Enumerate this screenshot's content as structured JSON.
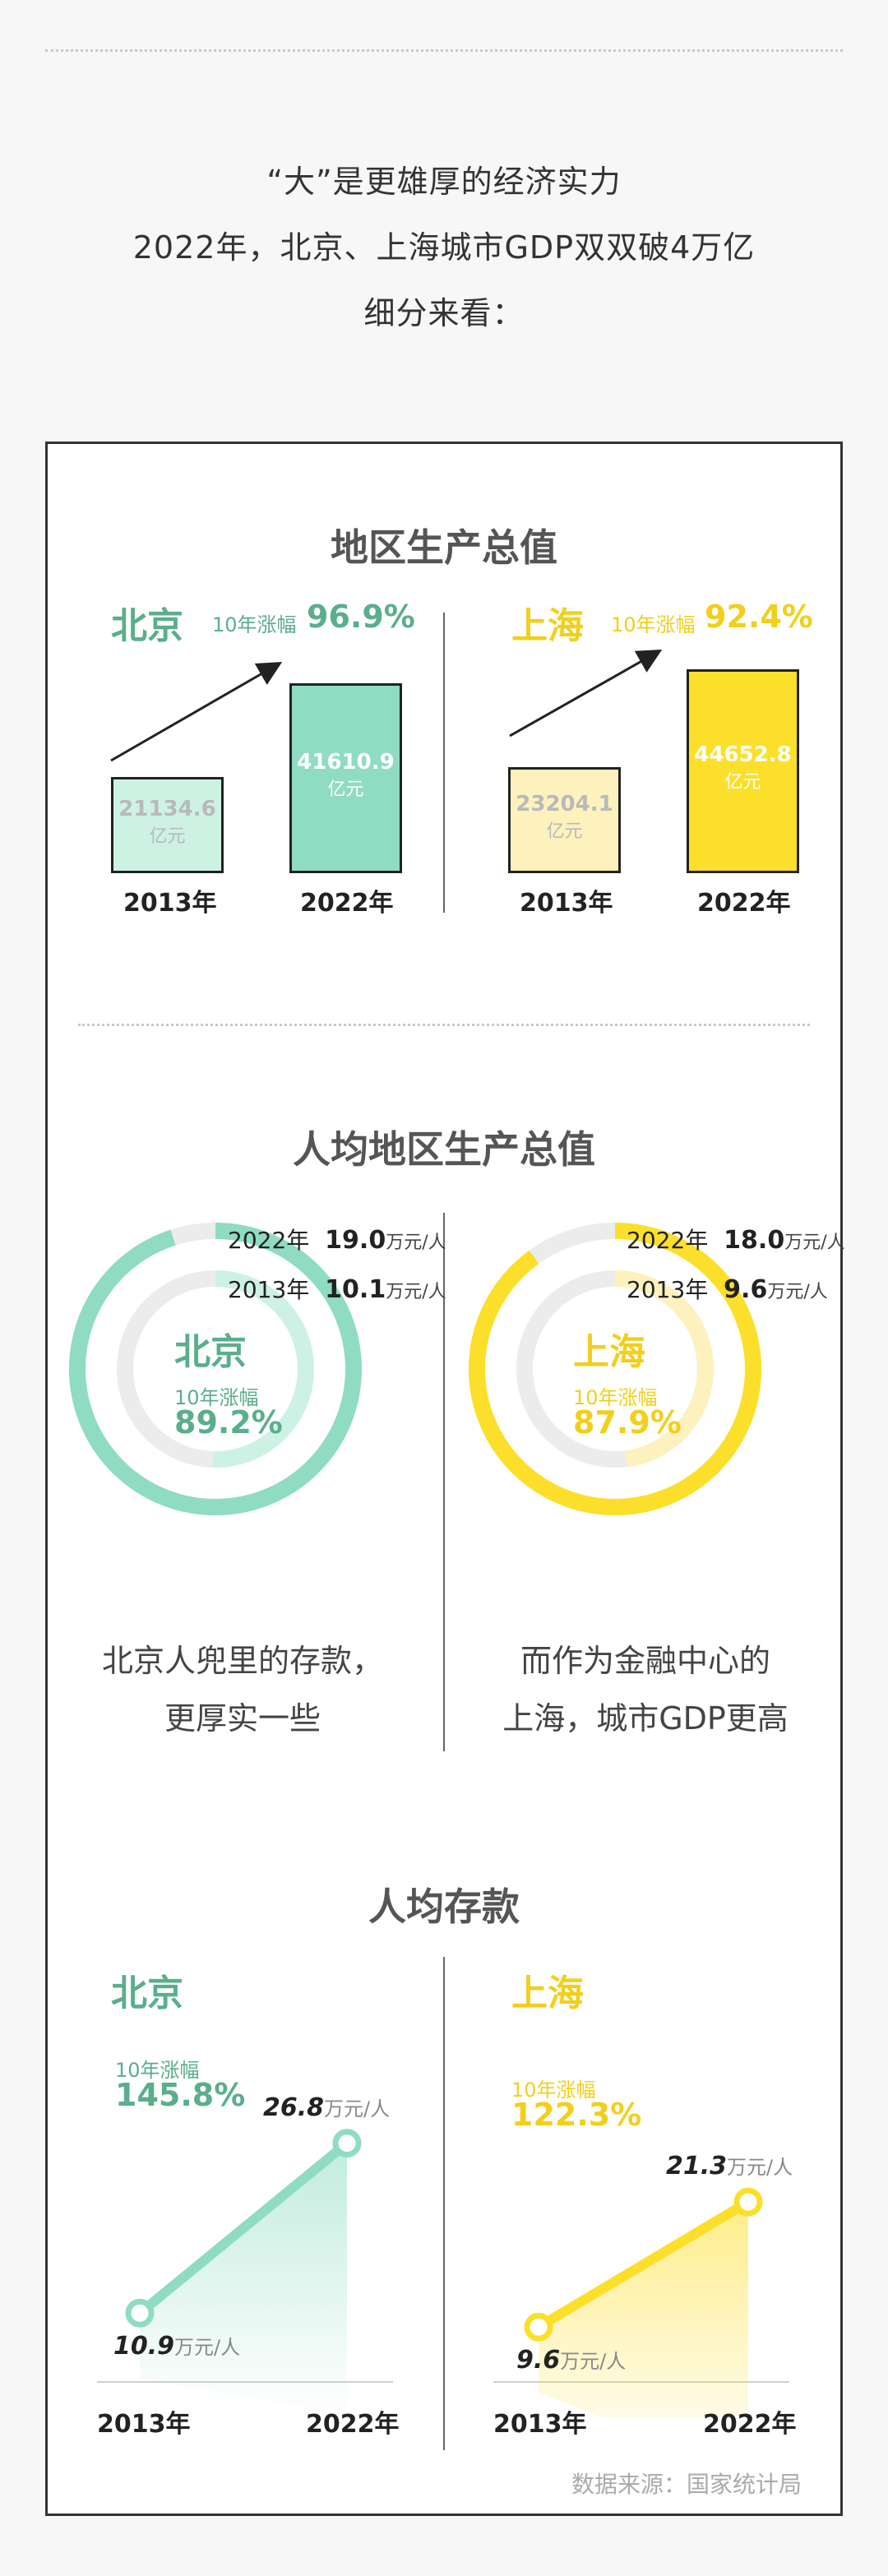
{
  "intro": {
    "line1": "“大”是更雄厚的经济实力",
    "line2": "2022年，北京、上海城市GDP双双破4万亿",
    "line3": "细分来看："
  },
  "section1": {
    "title": "地区生产总值",
    "growth_label": "10年涨幅",
    "beijing": {
      "city": "北京",
      "growth": "96.9%",
      "y2013": "21134.6",
      "y2022": "41610.9",
      "unit": "亿元",
      "year1": "2013年",
      "year2": "2022年"
    },
    "shanghai": {
      "city": "上海",
      "growth": "92.4%",
      "y2013": "23204.1",
      "y2022": "44652.8",
      "unit": "亿元",
      "year1": "2013年",
      "year2": "2022年"
    }
  },
  "section2": {
    "title": "人均地区生产总值",
    "growth_label": "10年涨幅",
    "unit": "万元/人",
    "beijing": {
      "city": "北京",
      "growth": "89.2%",
      "year2022": "2022年",
      "v2022": "19.0",
      "year2013": "2013年",
      "v2013": "10.1"
    },
    "shanghai": {
      "city": "上海",
      "growth": "87.9%",
      "year2022": "2022年",
      "v2022": "18.0",
      "year2013": "2013年",
      "v2013": "9.6"
    },
    "quote_left_1": "北京人兜里的存款，",
    "quote_left_2": "更厚实一些",
    "quote_right_1": "而作为金融中心的",
    "quote_right_2": "上海，城市GDP更高"
  },
  "section3": {
    "title": "人均存款",
    "growth_label": "10年涨幅",
    "unit": "万元/人",
    "beijing": {
      "city": "北京",
      "growth": "145.8%",
      "v2013": "10.9",
      "v2022": "26.8",
      "year1": "2013年",
      "year2": "2022年"
    },
    "shanghai": {
      "city": "上海",
      "growth": "122.3%",
      "v2013": "9.6",
      "v2022": "21.3",
      "year1": "2013年",
      "year2": "2022年"
    }
  },
  "source": "数据来源：国家统计局",
  "colors": {
    "green": "#5aae8c",
    "green_fill": "#8fdcc2",
    "green_light": "#cdf2e4",
    "yellow": "#f2cf1c",
    "yellow_fill": "#fcdf2a",
    "yellow_light": "#fdf1bd",
    "grey": "#ececec"
  },
  "chart_data": [
    {
      "type": "bar",
      "title": "地区生产总值",
      "categories": [
        "2013年",
        "2022年"
      ],
      "series": [
        {
          "name": "北京",
          "values": [
            21134.6,
            41610.9
          ]
        },
        {
          "name": "上海",
          "values": [
            23204.1,
            44652.8
          ]
        }
      ]
    },
    {
      "type": "pie",
      "title": "人均地区生产总值",
      "categories": [
        "2013年",
        "2022年"
      ],
      "series": [
        {
          "name": "北京",
          "values": [
            10.1,
            19.0
          ]
        },
        {
          "name": "上海",
          "values": [
            9.6,
            18.0
          ]
        }
      ]
    },
    {
      "type": "line",
      "title": "人均存款",
      "x": [
        "2013年",
        "2022年"
      ],
      "series": [
        {
          "name": "北京",
          "values": [
            10.9,
            26.8
          ]
        },
        {
          "name": "上海",
          "values": [
            9.6,
            21.3
          ]
        }
      ]
    }
  ]
}
